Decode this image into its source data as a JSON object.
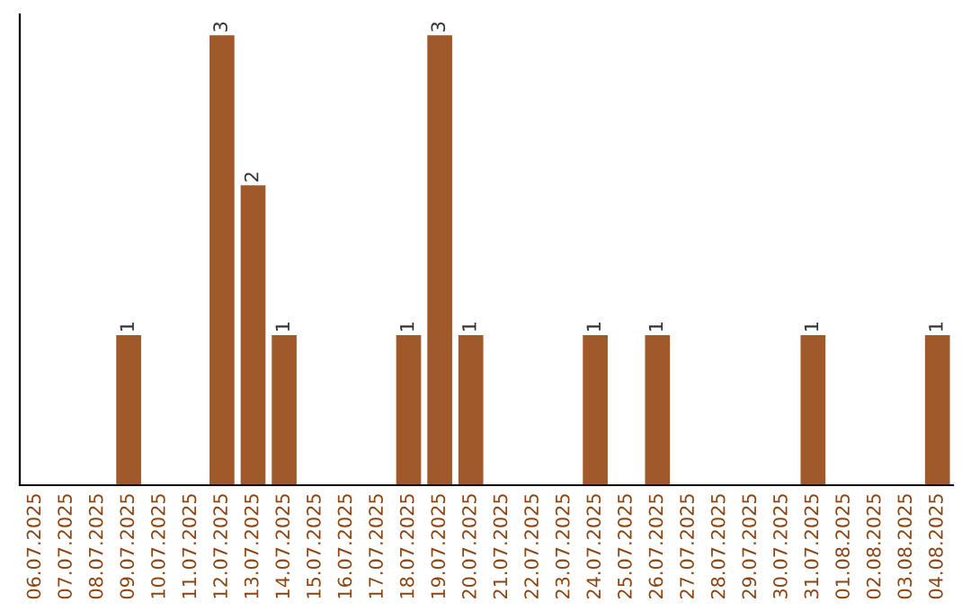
{
  "chart_data": {
    "type": "bar",
    "categories": [
      "06.07.2025",
      "07.07.2025",
      "08.07.2025",
      "09.07.2025",
      "10.07.2025",
      "11.07.2025",
      "12.07.2025",
      "13.07.2025",
      "14.07.2025",
      "15.07.2025",
      "16.07.2025",
      "17.07.2025",
      "18.07.2025",
      "19.07.2025",
      "20.07.2025",
      "21.07.2025",
      "22.07.2025",
      "23.07.2025",
      "24.07.2025",
      "25.07.2025",
      "26.07.2025",
      "27.07.2025",
      "28.07.2025",
      "29.07.2025",
      "30.07.2025",
      "31.07.2025",
      "01.08.2025",
      "02.08.2025",
      "03.08.2025",
      "04.08.2025"
    ],
    "values": [
      0,
      0,
      0,
      1,
      0,
      0,
      3,
      2,
      1,
      0,
      0,
      0,
      1,
      3,
      1,
      0,
      0,
      0,
      1,
      0,
      1,
      0,
      0,
      0,
      0,
      1,
      0,
      0,
      0,
      1
    ],
    "value_labels": [
      null,
      null,
      null,
      "1",
      null,
      null,
      "3",
      "2",
      "1",
      null,
      null,
      null,
      "1",
      "3",
      "1",
      null,
      null,
      null,
      "1",
      null,
      "1",
      null,
      null,
      null,
      null,
      "1",
      null,
      null,
      null,
      "1"
    ],
    "color": "#a0592b",
    "ylim": [
      0,
      3.14
    ],
    "tick_labels": "x",
    "grid": false,
    "legend": false
  }
}
